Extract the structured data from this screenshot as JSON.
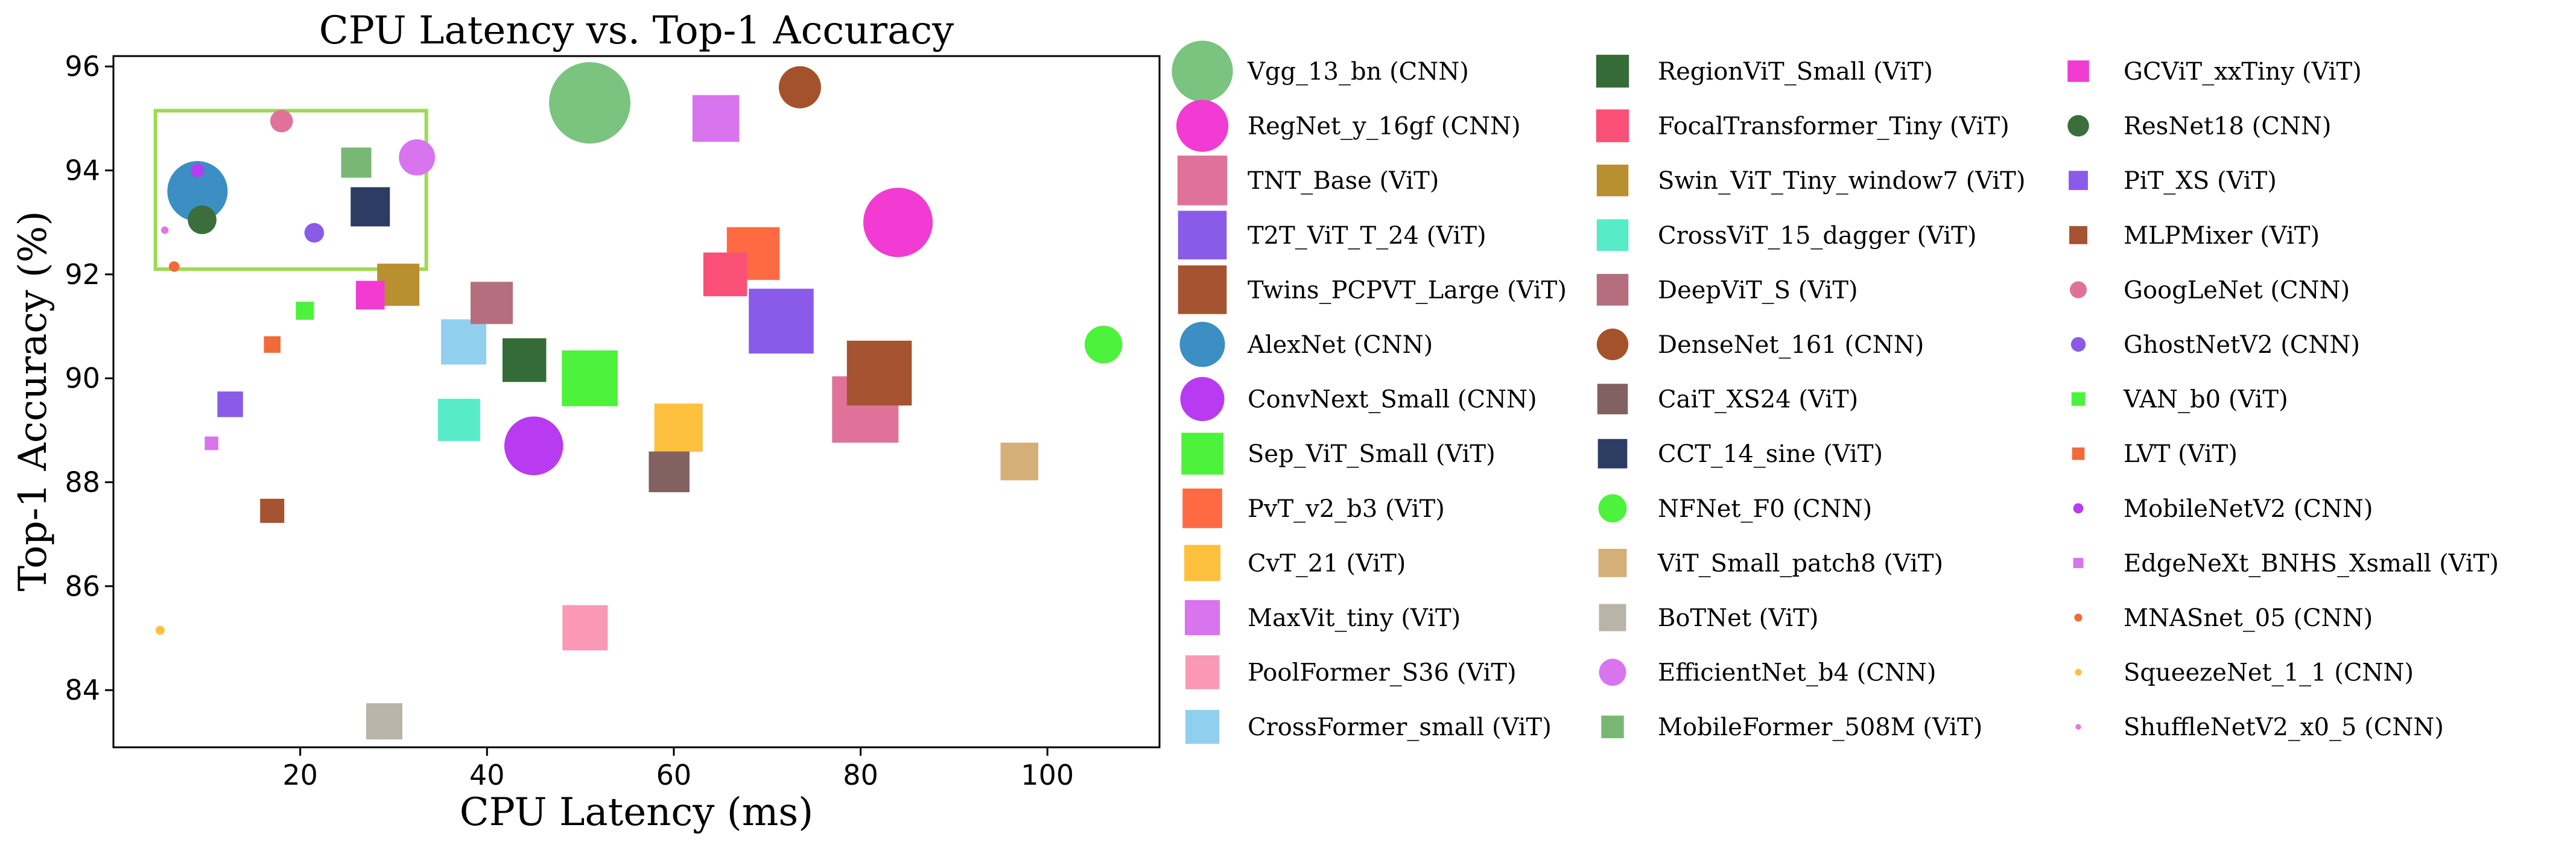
{
  "chart_data": {
    "type": "scatter",
    "title": "CPU Latency vs. Top-1 Accuracy",
    "xlabel": "CPU Latency (ms)",
    "ylabel": "Top-1 Accuracy (%)",
    "xlim": [
      0,
      112
    ],
    "ylim": [
      82.9,
      96.2
    ],
    "xticks": [
      20,
      40,
      60,
      80,
      100
    ],
    "yticks": [
      84,
      86,
      88,
      90,
      92,
      94,
      96
    ],
    "grid": false,
    "legend_location": "right, outside plot, 3 columns",
    "highlight_box": {
      "x": [
        4.5,
        33.5
      ],
      "y": [
        92.1,
        95.15
      ],
      "color": "#9ddb4f"
    },
    "points": [
      {
        "label": "Vgg_13_bn (CNN)",
        "x": 51.0,
        "y": 95.3,
        "shape": "circle",
        "color": "#7bc47f",
        "size": 5.4
      },
      {
        "label": "RegNet_y_16gf (CNN)",
        "x": 84.0,
        "y": 93.0,
        "shape": "circle",
        "color": "#f23bd2",
        "size": 4.6
      },
      {
        "label": "TNT_Base (ViT)",
        "x": 80.5,
        "y": 89.4,
        "shape": "square",
        "color": "#e0729a",
        "size": 4.4
      },
      {
        "label": "T2T_ViT_T_24 (ViT)",
        "x": 71.5,
        "y": 91.1,
        "shape": "square",
        "color": "#8a5be8",
        "size": 4.3
      },
      {
        "label": "Twins_PCPVT_Large (ViT)",
        "x": 82.0,
        "y": 90.1,
        "shape": "square",
        "color": "#a55330",
        "size": 4.3
      },
      {
        "label": "AlexNet (CNN)",
        "x": 9.0,
        "y": 93.6,
        "shape": "circle",
        "color": "#3b8fc2",
        "size": 4.0
      },
      {
        "label": "ConvNext_Small (CNN)",
        "x": 45.0,
        "y": 88.7,
        "shape": "circle",
        "color": "#b83bf2",
        "size": 3.9
      },
      {
        "label": "Sep_ViT_Small (ViT)",
        "x": 51.0,
        "y": 90.0,
        "shape": "square",
        "color": "#4cf23b",
        "size": 3.7
      },
      {
        "label": "PvT_v2_b3 (ViT)",
        "x": 68.5,
        "y": 92.4,
        "shape": "square",
        "color": "#ff6a42",
        "size": 3.5
      },
      {
        "label": "CvT_21 (ViT)",
        "x": 60.5,
        "y": 89.05,
        "shape": "square",
        "color": "#fdc03e",
        "size": 3.2
      },
      {
        "label": "MaxVit_tiny (ViT)",
        "x": 64.5,
        "y": 95.0,
        "shape": "square",
        "color": "#d774ee",
        "size": 3.1
      },
      {
        "label": "PoolFormer_S36 (ViT)",
        "x": 50.5,
        "y": 85.2,
        "shape": "square",
        "color": "#fb98b8",
        "size": 3.0
      },
      {
        "label": "CrossFormer_small (ViT)",
        "x": 37.5,
        "y": 90.7,
        "shape": "square",
        "color": "#91cfef",
        "size": 3.0
      },
      {
        "label": "RegionViT_Small (ViT)",
        "x": 44.0,
        "y": 90.35,
        "shape": "square",
        "color": "#356b37",
        "size": 2.9
      },
      {
        "label": "FocalTransformer_Tiny (ViT)",
        "x": 65.5,
        "y": 92.0,
        "shape": "square",
        "color": "#fa5078",
        "size": 2.9
      },
      {
        "label": "Swin_ViT_Tiny_window7 (ViT)",
        "x": 30.5,
        "y": 91.8,
        "shape": "square",
        "color": "#b89030",
        "size": 2.8
      },
      {
        "label": "CrossViT_15_dagger (ViT)",
        "x": 37.0,
        "y": 89.2,
        "shape": "square",
        "color": "#58ebc7",
        "size": 2.8
      },
      {
        "label": "DeepViT_S (ViT)",
        "x": 40.5,
        "y": 91.45,
        "shape": "square",
        "color": "#b56e7d",
        "size": 2.8
      },
      {
        "label": "DenseNet_161 (CNN)",
        "x": 73.5,
        "y": 95.6,
        "shape": "circle",
        "color": "#a4522c",
        "size": 2.8
      },
      {
        "label": "CaiT_XS24 (ViT)",
        "x": 59.5,
        "y": 88.2,
        "shape": "square",
        "color": "#836161",
        "size": 2.7
      },
      {
        "label": "CCT_14_sine (ViT)",
        "x": 27.5,
        "y": 93.3,
        "shape": "square",
        "color": "#2c3c63",
        "size": 2.6
      },
      {
        "label": "NFNet_F0 (CNN)",
        "x": 106.0,
        "y": 90.65,
        "shape": "circle",
        "color": "#4cf23b",
        "size": 2.5
      },
      {
        "label": "ViT_Small_patch8 (ViT)",
        "x": 97.0,
        "y": 88.4,
        "shape": "square",
        "color": "#d4b078",
        "size": 2.5
      },
      {
        "label": "BoTNet (ViT)",
        "x": 29.0,
        "y": 83.4,
        "shape": "square",
        "color": "#b8b4a8",
        "size": 2.4
      },
      {
        "label": "EfficientNet_b4 (CNN)",
        "x": 32.5,
        "y": 94.25,
        "shape": "circle",
        "color": "#d874ee",
        "size": 2.4
      },
      {
        "label": "MobileFormer_508M (ViT)",
        "x": 26.0,
        "y": 94.15,
        "shape": "square",
        "color": "#78b874",
        "size": 2.0
      },
      {
        "label": "GCViT_xxTiny (ViT)",
        "x": 27.5,
        "y": 91.6,
        "shape": "square",
        "color": "#f23bd2",
        "size": 1.9
      },
      {
        "label": "ResNet18 (CNN)",
        "x": 9.5,
        "y": 93.05,
        "shape": "circle",
        "color": "#3b6e3b",
        "size": 1.9
      },
      {
        "label": "PiT_XS (ViT)",
        "x": 12.5,
        "y": 89.5,
        "shape": "square",
        "color": "#8a5be8",
        "size": 1.7
      },
      {
        "label": "MLPMixer (ViT)",
        "x": 17.0,
        "y": 87.45,
        "shape": "square",
        "color": "#a55330",
        "size": 1.6
      },
      {
        "label": "GoogLeNet (CNN)",
        "x": 18.0,
        "y": 94.95,
        "shape": "circle",
        "color": "#e0729a",
        "size": 1.5
      },
      {
        "label": "GhostNetV2 (CNN)",
        "x": 21.5,
        "y": 92.8,
        "shape": "circle",
        "color": "#8a5be8",
        "size": 1.3
      },
      {
        "label": "VAN_b0 (ViT)",
        "x": 20.5,
        "y": 91.3,
        "shape": "square",
        "color": "#4cf23b",
        "size": 1.2
      },
      {
        "label": "LVT (ViT)",
        "x": 17.0,
        "y": 90.65,
        "shape": "square",
        "color": "#f06a3a",
        "size": 1.1
      },
      {
        "label": "MobileNetV2 (CNN)",
        "x": 9.0,
        "y": 94.0,
        "shape": "circle",
        "color": "#b83bf2",
        "size": 0.9
      },
      {
        "label": "EdgeNeXt_BNHS_Xsmall (ViT)",
        "x": 10.5,
        "y": 88.75,
        "shape": "square",
        "color": "#d774ee",
        "size": 0.9
      },
      {
        "label": "MNASnet_05 (CNN)",
        "x": 6.5,
        "y": 92.15,
        "shape": "circle",
        "color": "#f06a3a",
        "size": 0.7
      },
      {
        "label": "SqueezeNet_1_1 (CNN)",
        "x": 5.0,
        "y": 85.15,
        "shape": "circle",
        "color": "#fdc03e",
        "size": 0.6
      },
      {
        "label": "ShuffleNetV2_x0_5 (CNN)",
        "x": 5.5,
        "y": 92.85,
        "shape": "circle",
        "color": "#e07ae0",
        "size": 0.5
      }
    ]
  }
}
